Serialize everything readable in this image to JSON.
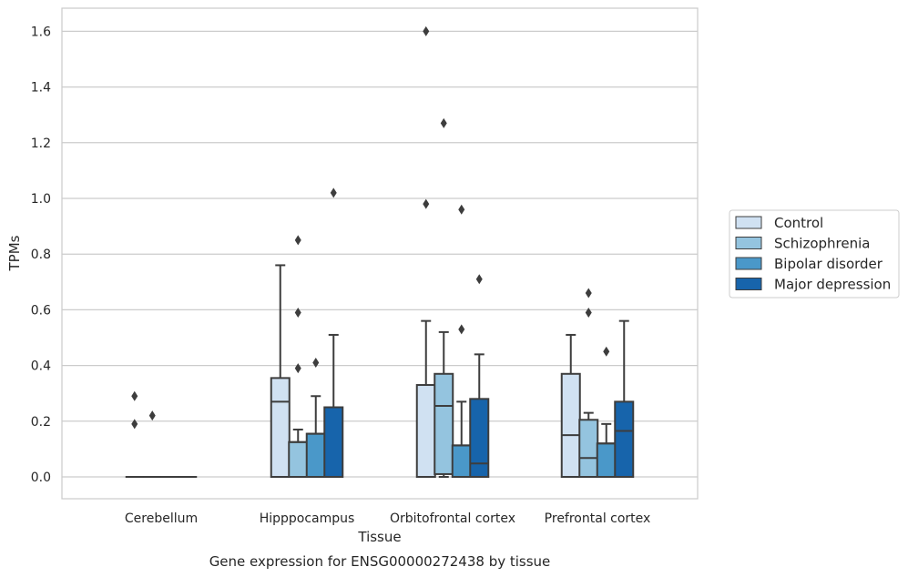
{
  "chart_data": {
    "type": "box",
    "xlabel": "Tissue",
    "ylabel": "TPMs",
    "caption": "Gene expression for ENSG00000272438 by tissue",
    "ylim": [
      -0.08,
      1.68
    ],
    "yticks": [
      "0.0",
      "0.2",
      "0.4",
      "0.6",
      "0.8",
      "1.0",
      "1.2",
      "1.4",
      "1.6"
    ],
    "grid": "horizontal",
    "legend_placement": "right",
    "categories": [
      "Cerebellum",
      "Hipppocampus",
      "Orbitofrontal cortex",
      "Prefrontal cortex"
    ],
    "series": [
      {
        "name": "Control",
        "color": "#d0e1f2",
        "boxes": [
          {
            "low": 0,
            "q1": 0,
            "median": 0,
            "q3": 0,
            "high": 0,
            "outliers": [
              0.29,
              0.19
            ]
          },
          {
            "low": 0,
            "q1": 0,
            "median": 0.27,
            "q3": 0.355,
            "high": 0.76,
            "outliers": []
          },
          {
            "low": 0,
            "q1": 0,
            "median": 0,
            "q3": 0.33,
            "high": 0.56,
            "outliers": [
              1.6,
              0.98
            ]
          },
          {
            "low": 0,
            "q1": 0,
            "median": 0.15,
            "q3": 0.37,
            "high": 0.51,
            "outliers": []
          }
        ]
      },
      {
        "name": "Schizophrenia",
        "color": "#94c4df",
        "boxes": [
          {
            "low": 0,
            "q1": 0,
            "median": 0,
            "q3": 0,
            "high": 0,
            "outliers": [
              0.22
            ]
          },
          {
            "low": 0,
            "q1": 0,
            "median": 0.125,
            "q3": 0.125,
            "high": 0.17,
            "outliers": [
              0.85,
              0.59,
              0.39
            ]
          },
          {
            "low": 0,
            "q1": 0.01,
            "median": 0.255,
            "q3": 0.37,
            "high": 0.52,
            "outliers": [
              1.27
            ]
          },
          {
            "low": 0,
            "q1": 0,
            "median": 0.068,
            "q3": 0.205,
            "high": 0.23,
            "outliers": [
              0.66,
              0.59
            ]
          }
        ]
      },
      {
        "name": "Bipolar disorder",
        "color": "#4a98c9",
        "boxes": [
          {
            "low": 0,
            "q1": 0,
            "median": 0,
            "q3": 0,
            "high": 0,
            "outliers": []
          },
          {
            "low": 0,
            "q1": 0,
            "median": 0.155,
            "q3": 0.155,
            "high": 0.29,
            "outliers": [
              0.41
            ]
          },
          {
            "low": 0,
            "q1": 0,
            "median": 0.113,
            "q3": 0.113,
            "high": 0.27,
            "outliers": [
              0.96,
              0.53
            ]
          },
          {
            "low": 0,
            "q1": 0,
            "median": 0.12,
            "q3": 0.12,
            "high": 0.19,
            "outliers": [
              0.45
            ]
          }
        ]
      },
      {
        "name": "Major depression",
        "color": "#1764ab",
        "boxes": [
          {
            "low": 0,
            "q1": 0,
            "median": 0,
            "q3": 0,
            "high": 0,
            "outliers": []
          },
          {
            "low": 0,
            "q1": 0,
            "median": 0.25,
            "q3": 0.25,
            "high": 0.51,
            "outliers": [
              1.02
            ]
          },
          {
            "low": 0,
            "q1": 0,
            "median": 0.048,
            "q3": 0.28,
            "high": 0.44,
            "outliers": [
              0.71
            ]
          },
          {
            "low": 0,
            "q1": 0,
            "median": 0.165,
            "q3": 0.27,
            "high": 0.56,
            "outliers": []
          }
        ]
      }
    ]
  }
}
